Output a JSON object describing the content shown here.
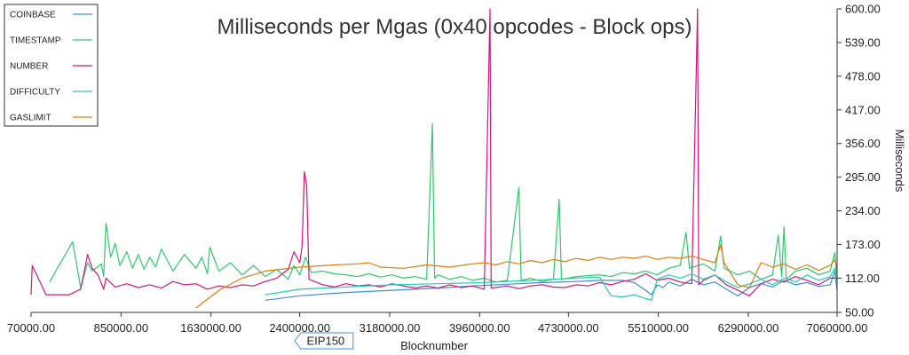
{
  "chart_data": {
    "type": "line",
    "title": "Milliseconds per Mgas (0x40 opcodes - Block ops)",
    "xlabel": "Blocknumber",
    "ylabel": "Milliseconds",
    "xlim": [
      70000,
      7060000
    ],
    "ylim": [
      50,
      600
    ],
    "x_ticks": [
      "70000.00",
      "850000.00",
      "1630000.00",
      "2400000.00",
      "3180000.00",
      "3960000.00",
      "4730000.00",
      "5510000.00",
      "6290000.00",
      "7060000.00"
    ],
    "x_tick_values": [
      70000,
      850000,
      1630000,
      2400000,
      3180000,
      3960000,
      4730000,
      5510000,
      6290000,
      7060000
    ],
    "y_ticks": [
      "50.00",
      "112.00",
      "173.00",
      "234.00",
      "295.00",
      "356.00",
      "417.00",
      "478.00",
      "539.00",
      "600.00"
    ],
    "y_tick_values": [
      50,
      112,
      173,
      234,
      295,
      356,
      417,
      478,
      539,
      600
    ],
    "y_axis_side": "right",
    "grid": false,
    "legend_position": "top-left",
    "annotations": [
      {
        "label": "EIP150",
        "x": 2463000
      }
    ],
    "series": [
      {
        "name": "COINBASE",
        "color": "#3d8fd6",
        "points": [
          [
            2100000,
            72
          ],
          [
            2400000,
            80
          ],
          [
            2800000,
            86
          ],
          [
            3200000,
            90
          ],
          [
            3600000,
            94
          ],
          [
            3900000,
            98
          ],
          [
            4200000,
            101
          ],
          [
            4500000,
            104
          ],
          [
            4800000,
            106
          ],
          [
            5000000,
            108
          ],
          [
            5200000,
            108
          ],
          [
            5300000,
            104
          ],
          [
            5400000,
            90
          ],
          [
            5450000,
            82
          ],
          [
            5500000,
            100
          ],
          [
            5550000,
            95
          ],
          [
            5600000,
            105
          ],
          [
            5700000,
            98
          ],
          [
            5800000,
            110
          ],
          [
            5900000,
            100
          ],
          [
            6000000,
            105
          ],
          [
            6100000,
            92
          ],
          [
            6200000,
            80
          ],
          [
            6300000,
            95
          ],
          [
            6400000,
            102
          ],
          [
            6500000,
            96
          ],
          [
            6600000,
            108
          ],
          [
            6700000,
            100
          ],
          [
            6800000,
            104
          ],
          [
            6900000,
            97
          ],
          [
            7000000,
            100
          ],
          [
            7040000,
            125
          ],
          [
            7060000,
            90
          ]
        ]
      },
      {
        "name": "TIMESTAMP",
        "color": "#2ec86a",
        "points": [
          [
            230000,
            105
          ],
          [
            430000,
            178
          ],
          [
            500000,
            95
          ],
          [
            560000,
            140
          ],
          [
            600000,
            125
          ],
          [
            680000,
            138
          ],
          [
            700000,
            115
          ],
          [
            720000,
            212
          ],
          [
            760000,
            150
          ],
          [
            800000,
            175
          ],
          [
            840000,
            135
          ],
          [
            900000,
            160
          ],
          [
            950000,
            130
          ],
          [
            1000000,
            155
          ],
          [
            1050000,
            128
          ],
          [
            1100000,
            150
          ],
          [
            1150000,
            132
          ],
          [
            1200000,
            165
          ],
          [
            1300000,
            125
          ],
          [
            1400000,
            155
          ],
          [
            1500000,
            130
          ],
          [
            1550000,
            150
          ],
          [
            1600000,
            120
          ],
          [
            1620000,
            168
          ],
          [
            1700000,
            125
          ],
          [
            1800000,
            140
          ],
          [
            1900000,
            118
          ],
          [
            2000000,
            135
          ],
          [
            2100000,
            115
          ],
          [
            2200000,
            128
          ],
          [
            2300000,
            110
          ],
          [
            2350000,
            135
          ],
          [
            2400000,
            118
          ],
          [
            2450000,
            150
          ],
          [
            2500000,
            122
          ],
          [
            2600000,
            125
          ],
          [
            2700000,
            120
          ],
          [
            2800000,
            118
          ],
          [
            2900000,
            115
          ],
          [
            3000000,
            120
          ],
          [
            3100000,
            114
          ],
          [
            3200000,
            118
          ],
          [
            3300000,
            112
          ],
          [
            3400000,
            115
          ],
          [
            3500000,
            110
          ],
          [
            3550000,
            392
          ],
          [
            3570000,
            112
          ],
          [
            3600000,
            118
          ],
          [
            3700000,
            110
          ],
          [
            3800000,
            115
          ],
          [
            3900000,
            108
          ],
          [
            4000000,
            112
          ],
          [
            4100000,
            105
          ],
          [
            4200000,
            108
          ],
          [
            4300000,
            276
          ],
          [
            4320000,
            108
          ],
          [
            4400000,
            112
          ],
          [
            4500000,
            106
          ],
          [
            4600000,
            110
          ],
          [
            4650000,
            255
          ],
          [
            4670000,
            110
          ],
          [
            4800000,
            115
          ],
          [
            5000000,
            118
          ],
          [
            5100000,
            115
          ],
          [
            5200000,
            122
          ],
          [
            5300000,
            120
          ],
          [
            5400000,
            125
          ],
          [
            5500000,
            118
          ],
          [
            5600000,
            130
          ],
          [
            5700000,
            135
          ],
          [
            5750000,
            195
          ],
          [
            5780000,
            130
          ],
          [
            5900000,
            138
          ],
          [
            6000000,
            125
          ],
          [
            6050000,
            188
          ],
          [
            6080000,
            130
          ],
          [
            6200000,
            118
          ],
          [
            6300000,
            125
          ],
          [
            6400000,
            110
          ],
          [
            6500000,
            118
          ],
          [
            6550000,
            190
          ],
          [
            6580000,
            115
          ],
          [
            6600000,
            205
          ],
          [
            6620000,
            110
          ],
          [
            6700000,
            125
          ],
          [
            6800000,
            130
          ],
          [
            6900000,
            118
          ],
          [
            7000000,
            125
          ],
          [
            7040000,
            158
          ],
          [
            7060000,
            110
          ]
        ]
      },
      {
        "name": "NUMBER",
        "color": "#d1187a",
        "points": [
          [
            70000,
            82
          ],
          [
            80000,
            135
          ],
          [
            200000,
            82
          ],
          [
            400000,
            82
          ],
          [
            500000,
            92
          ],
          [
            560000,
            155
          ],
          [
            600000,
            130
          ],
          [
            650000,
            118
          ],
          [
            700000,
            92
          ],
          [
            720000,
            112
          ],
          [
            800000,
            96
          ],
          [
            900000,
            102
          ],
          [
            1000000,
            95
          ],
          [
            1100000,
            100
          ],
          [
            1200000,
            94
          ],
          [
            1300000,
            106
          ],
          [
            1400000,
            100
          ],
          [
            1500000,
            102
          ],
          [
            1600000,
            92
          ],
          [
            1700000,
            98
          ],
          [
            1800000,
            95
          ],
          [
            1900000,
            100
          ],
          [
            2000000,
            98
          ],
          [
            2100000,
            106
          ],
          [
            2200000,
            112
          ],
          [
            2300000,
            128
          ],
          [
            2350000,
            160
          ],
          [
            2400000,
            140
          ],
          [
            2420000,
            170
          ],
          [
            2440000,
            305
          ],
          [
            2460000,
            280
          ],
          [
            2480000,
            110
          ],
          [
            2600000,
            100
          ],
          [
            2700000,
            96
          ],
          [
            2800000,
            102
          ],
          [
            2900000,
            98
          ],
          [
            3000000,
            100
          ],
          [
            3100000,
            96
          ],
          [
            3200000,
            102
          ],
          [
            3300000,
            98
          ],
          [
            3400000,
            94
          ],
          [
            3500000,
            98
          ],
          [
            3600000,
            94
          ],
          [
            3700000,
            100
          ],
          [
            3800000,
            95
          ],
          [
            3900000,
            98
          ],
          [
            4000000,
            92
          ],
          [
            4050000,
            600
          ],
          [
            4060000,
            94
          ],
          [
            4200000,
            98
          ],
          [
            4300000,
            93
          ],
          [
            4400000,
            98
          ],
          [
            4500000,
            100
          ],
          [
            4600000,
            96
          ],
          [
            4700000,
            95
          ],
          [
            4800000,
            100
          ],
          [
            4900000,
            98
          ],
          [
            5000000,
            104
          ],
          [
            5100000,
            100
          ],
          [
            5200000,
            106
          ],
          [
            5300000,
            110
          ],
          [
            5400000,
            120
          ],
          [
            5500000,
            108
          ],
          [
            5600000,
            112
          ],
          [
            5700000,
            105
          ],
          [
            5800000,
            102
          ],
          [
            5850000,
            600
          ],
          [
            5860000,
            100
          ],
          [
            5900000,
            108
          ],
          [
            6000000,
            118
          ],
          [
            6100000,
            100
          ],
          [
            6200000,
            90
          ],
          [
            6300000,
            80
          ],
          [
            6400000,
            102
          ],
          [
            6500000,
            110
          ],
          [
            6600000,
            105
          ],
          [
            6700000,
            115
          ],
          [
            6800000,
            108
          ],
          [
            6900000,
            100
          ],
          [
            7000000,
            112
          ],
          [
            7060000,
            112
          ]
        ]
      },
      {
        "name": "DIFFICULTY",
        "color": "#1fcfb0",
        "points": [
          [
            2100000,
            82
          ],
          [
            2400000,
            92
          ],
          [
            2800000,
            96
          ],
          [
            3200000,
            100
          ],
          [
            3600000,
            102
          ],
          [
            4000000,
            104
          ],
          [
            4400000,
            108
          ],
          [
            4800000,
            112
          ],
          [
            5000000,
            114
          ],
          [
            5100000,
            80
          ],
          [
            5200000,
            78
          ],
          [
            5300000,
            82
          ],
          [
            5400000,
            75
          ],
          [
            5450000,
            72
          ],
          [
            5500000,
            110
          ],
          [
            5600000,
            118
          ],
          [
            5700000,
            112
          ],
          [
            5800000,
            120
          ],
          [
            5900000,
            110
          ],
          [
            6000000,
            118
          ],
          [
            6100000,
            105
          ],
          [
            6200000,
            95
          ],
          [
            6300000,
            102
          ],
          [
            6400000,
            110
          ],
          [
            6500000,
            100
          ],
          [
            6600000,
            112
          ],
          [
            6700000,
            105
          ],
          [
            6800000,
            118
          ],
          [
            6900000,
            108
          ],
          [
            7000000,
            115
          ],
          [
            7040000,
            130
          ],
          [
            7060000,
            105
          ]
        ]
      },
      {
        "name": "GASLIMIT",
        "color": "#e07b12",
        "points": [
          [
            1500000,
            58
          ],
          [
            1700000,
            90
          ],
          [
            1900000,
            112
          ],
          [
            2100000,
            125
          ],
          [
            2400000,
            132
          ],
          [
            2700000,
            136
          ],
          [
            2900000,
            138
          ],
          [
            3000000,
            140
          ],
          [
            3100000,
            132
          ],
          [
            3300000,
            130
          ],
          [
            3500000,
            136
          ],
          [
            3700000,
            132
          ],
          [
            3900000,
            138
          ],
          [
            4000000,
            140
          ],
          [
            4100000,
            136
          ],
          [
            4200000,
            142
          ],
          [
            4300000,
            138
          ],
          [
            4400000,
            144
          ],
          [
            4500000,
            140
          ],
          [
            4600000,
            146
          ],
          [
            4700000,
            142
          ],
          [
            4800000,
            148
          ],
          [
            4900000,
            144
          ],
          [
            5000000,
            150
          ],
          [
            5100000,
            146
          ],
          [
            5200000,
            150
          ],
          [
            5300000,
            148
          ],
          [
            5400000,
            152
          ],
          [
            5500000,
            146
          ],
          [
            5600000,
            150
          ],
          [
            5700000,
            148
          ],
          [
            5800000,
            152
          ],
          [
            5900000,
            146
          ],
          [
            6000000,
            140
          ],
          [
            6050000,
            172
          ],
          [
            6080000,
            140
          ],
          [
            6200000,
            100
          ],
          [
            6300000,
            95
          ],
          [
            6400000,
            140
          ],
          [
            6500000,
            132
          ],
          [
            6600000,
            138
          ],
          [
            6700000,
            128
          ],
          [
            6800000,
            136
          ],
          [
            6900000,
            126
          ],
          [
            7000000,
            135
          ],
          [
            7040000,
            145
          ],
          [
            7060000,
            130
          ]
        ]
      }
    ]
  }
}
